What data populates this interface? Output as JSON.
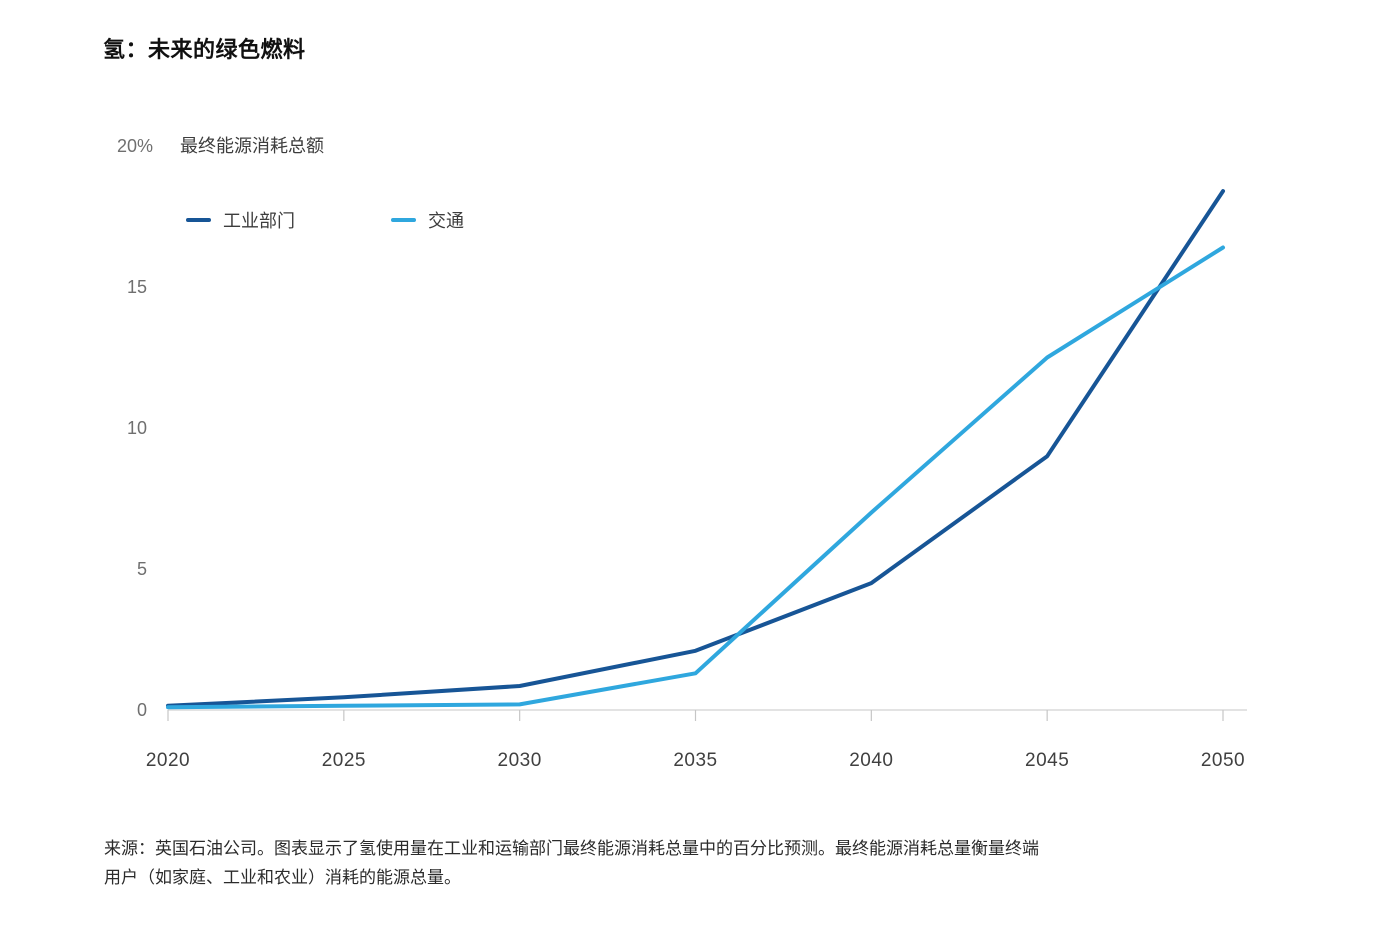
{
  "title": "氢：未来的绿色燃料",
  "source": {
    "line1": "来源：英国石油公司。图表显示了氢使用量在工业和运输部门最终能源消耗总量中的百分比预测。最终能源消耗总量衡量终端",
    "line2": "用户（如家庭、工业和农业）消耗的能源总量。"
  },
  "colors": {
    "industry_line": "#175596",
    "transport_line": "#2fa7de",
    "axis_line": "#d2d2d2",
    "tick_mark": "#c6c6c6"
  },
  "chart_data": {
    "type": "line",
    "title": "氢：未来的绿色燃料",
    "y_axis_title": "最终能源消耗总额",
    "categories": [
      "2020",
      "2025",
      "2030",
      "2035",
      "2040",
      "2045",
      "2050"
    ],
    "ylim": [
      0,
      20
    ],
    "yticks": [
      0,
      5,
      10,
      15,
      20
    ],
    "ytick_labels": [
      "0",
      "5",
      "10",
      "15",
      "20%"
    ],
    "grid": false,
    "legend_position": "top-left",
    "series": [
      {
        "key": "industry",
        "name": "工业部门",
        "color": "#175596",
        "values": [
          0.15,
          0.45,
          0.85,
          2.1,
          4.5,
          9.0,
          18.4
        ]
      },
      {
        "key": "transport",
        "name": "交通",
        "color": "#2fa7de",
        "values": [
          0.1,
          0.15,
          0.2,
          1.3,
          7.0,
          12.5,
          16.4
        ]
      }
    ]
  }
}
